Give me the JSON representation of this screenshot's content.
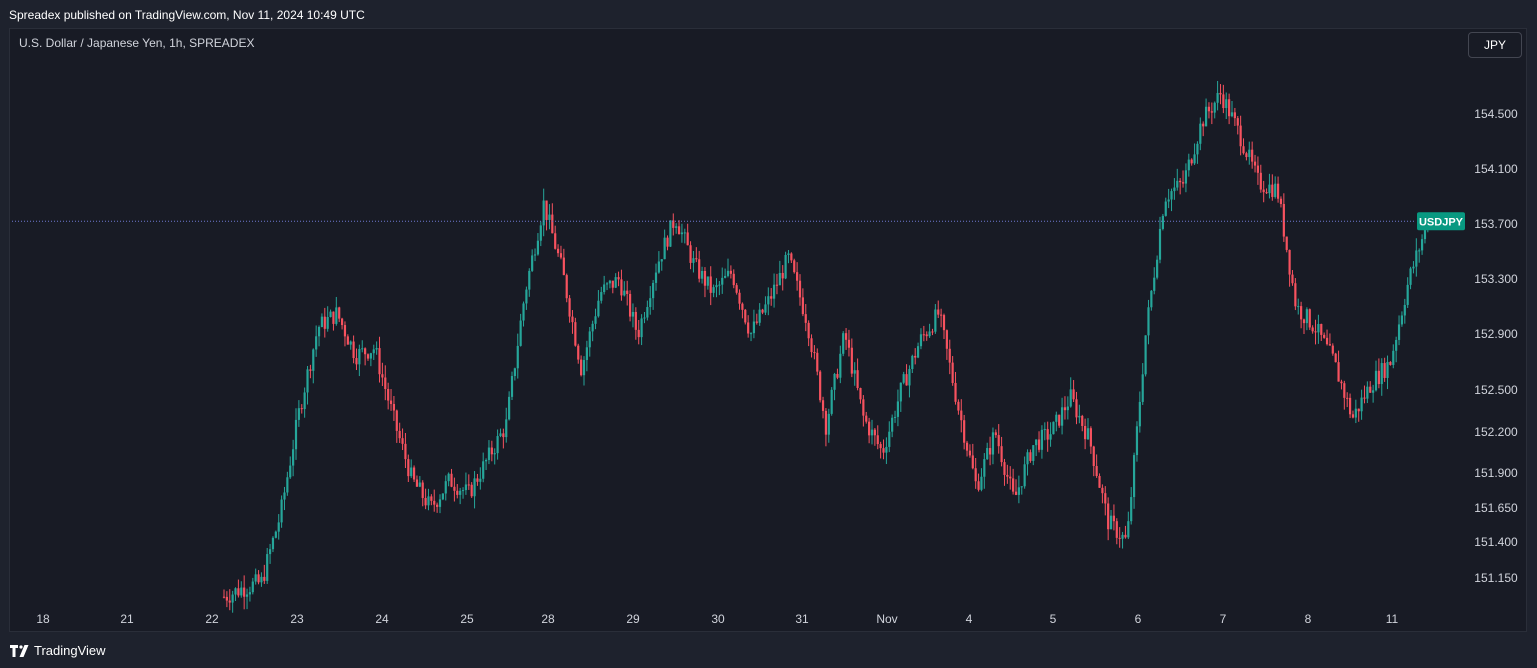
{
  "header": {
    "published_by": "Spreadex published on TradingView.com, Nov 11, 2024 10:49 UTC"
  },
  "chart_header": {
    "symbol_title": "U.S. Dollar / Japanese Yen, 1h, SPREADEX",
    "currency_button": "JPY"
  },
  "footer": {
    "brand": "TradingView",
    "logo_icon": "tradingview-logo-icon"
  },
  "colors": {
    "background": "#181b25",
    "up": "#26a69a",
    "down": "#f7525f",
    "last_price_line": "#6f7bd4",
    "label_bg": "#089981"
  },
  "chart_data": {
    "type": "candlestick",
    "title": "U.S. Dollar / Japanese Yen, 1h, SPREADEX",
    "series_name": "USDJPY",
    "last_price": 153.72,
    "last_price_label": "USDJPY",
    "y_ticks": [
      151.15,
      151.4,
      151.65,
      151.9,
      152.2,
      152.5,
      152.9,
      153.3,
      153.7,
      154.1,
      154.5
    ],
    "y_tick_labels": [
      "151.150",
      "151.400",
      "151.650",
      "151.900",
      "152.200",
      "152.500",
      "152.900",
      "153.300",
      "153.700",
      "154.100",
      "154.500"
    ],
    "x_tick_labels": [
      "18",
      "21",
      "22",
      "23",
      "24",
      "25",
      "28",
      "29",
      "30",
      "31",
      "Nov",
      "4",
      "5",
      "6",
      "7",
      "8",
      "11"
    ],
    "grid": false,
    "price_path": [
      {
        "date": "Oct 22",
        "close": 151.02
      },
      {
        "date": "Oct 22",
        "close": 151.08
      },
      {
        "date": "Oct 23",
        "close": 151.12
      },
      {
        "date": "Oct 23",
        "close": 151.6
      },
      {
        "date": "Oct 23",
        "close": 152.35
      },
      {
        "date": "Oct 23",
        "close": 152.95
      },
      {
        "date": "Oct 23",
        "close": 153.05
      },
      {
        "date": "Oct 24",
        "close": 152.75
      },
      {
        "date": "Oct 24",
        "close": 152.8
      },
      {
        "date": "Oct 24",
        "close": 152.3
      },
      {
        "date": "Oct 24",
        "close": 151.85
      },
      {
        "date": "Oct 25",
        "close": 151.65
      },
      {
        "date": "Oct 25",
        "close": 151.85
      },
      {
        "date": "Oct 25",
        "close": 151.75
      },
      {
        "date": "Oct 25",
        "close": 152.0
      },
      {
        "date": "Oct 25",
        "close": 152.25
      },
      {
        "date": "Oct 28",
        "close": 153.2
      },
      {
        "date": "Oct 28",
        "close": 153.85
      },
      {
        "date": "Oct 28",
        "close": 153.35
      },
      {
        "date": "Oct 28",
        "close": 152.65
      },
      {
        "date": "Oct 29",
        "close": 153.2
      },
      {
        "date": "Oct 29",
        "close": 153.3
      },
      {
        "date": "Oct 29",
        "close": 152.9
      },
      {
        "date": "Oct 29",
        "close": 153.4
      },
      {
        "date": "Oct 29",
        "close": 153.75
      },
      {
        "date": "Oct 30",
        "close": 153.4
      },
      {
        "date": "Oct 30",
        "close": 153.2
      },
      {
        "date": "Oct 30",
        "close": 153.35
      },
      {
        "date": "Oct 30",
        "close": 152.9
      },
      {
        "date": "Oct 30",
        "close": 153.15
      },
      {
        "date": "Oct 31",
        "close": 153.45
      },
      {
        "date": "Oct 31",
        "close": 153.0
      },
      {
        "date": "Oct 31",
        "close": 152.25
      },
      {
        "date": "Oct 31",
        "close": 152.9
      },
      {
        "date": "Nov 1",
        "close": 152.3
      },
      {
        "date": "Nov 1",
        "close": 152.05
      },
      {
        "date": "Nov 1",
        "close": 152.5
      },
      {
        "date": "Nov 1",
        "close": 152.85
      },
      {
        "date": "Nov 1",
        "close": 153.05
      },
      {
        "date": "Nov 4",
        "close": 152.4
      },
      {
        "date": "Nov 4",
        "close": 151.8
      },
      {
        "date": "Nov 4",
        "close": 152.2
      },
      {
        "date": "Nov 5",
        "close": 151.7
      },
      {
        "date": "Nov 5",
        "close": 152.1
      },
      {
        "date": "Nov 5",
        "close": 152.2
      },
      {
        "date": "Nov 5",
        "close": 152.45
      },
      {
        "date": "Nov 5",
        "close": 152.15
      },
      {
        "date": "Nov 6",
        "close": 151.55
      },
      {
        "date": "Nov 6",
        "close": 151.4
      },
      {
        "date": "Nov 6",
        "close": 152.9
      },
      {
        "date": "Nov 6",
        "close": 153.9
      },
      {
        "date": "Nov 6",
        "close": 154.0
      },
      {
        "date": "Nov 7",
        "close": 154.45
      },
      {
        "date": "Nov 7",
        "close": 154.65
      },
      {
        "date": "Nov 7",
        "close": 154.35
      },
      {
        "date": "Nov 7",
        "close": 154.0
      },
      {
        "date": "Nov 7",
        "close": 153.95
      },
      {
        "date": "Nov 8",
        "close": 153.1
      },
      {
        "date": "Nov 8",
        "close": 152.95
      },
      {
        "date": "Nov 8",
        "close": 152.7
      },
      {
        "date": "Nov 8",
        "close": 152.3
      },
      {
        "date": "Nov 8",
        "close": 152.55
      },
      {
        "date": "Nov 11",
        "close": 152.7
      },
      {
        "date": "Nov 11",
        "close": 153.3
      },
      {
        "date": "Nov 11",
        "close": 153.72
      }
    ]
  }
}
